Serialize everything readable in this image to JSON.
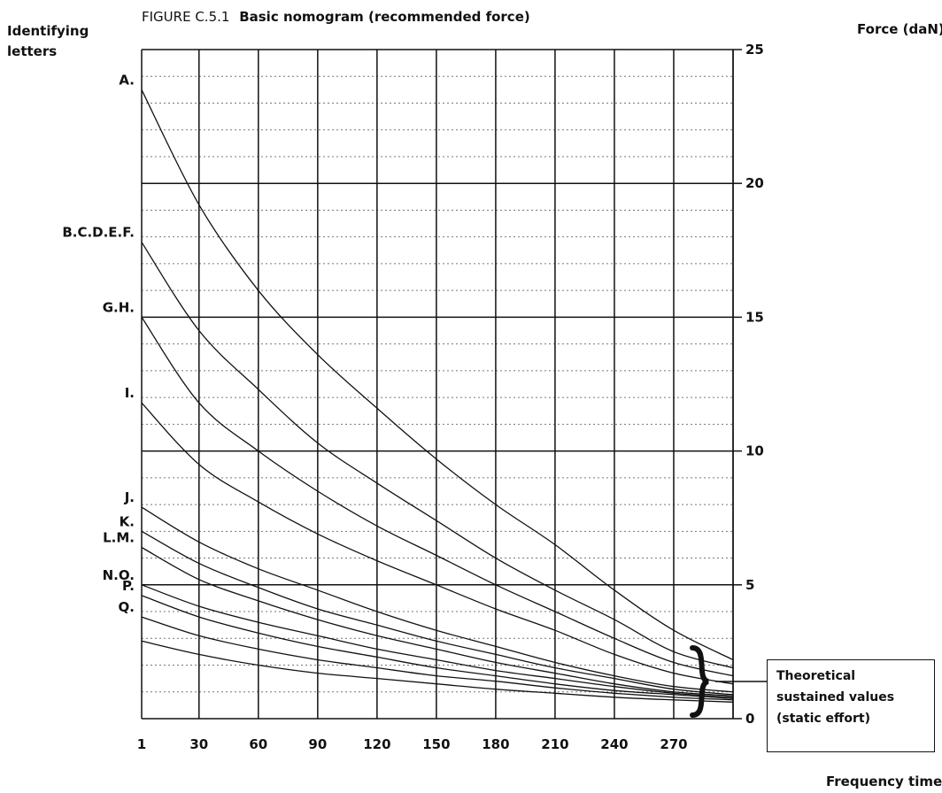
{
  "figure_label": "FIGURE C.5.1",
  "figure_title": "Basic nomogram (recommended force)",
  "left_axis_title": [
    "Identifying",
    "letters"
  ],
  "right_axis_title": "Force (daN)",
  "note_lines": [
    "Theoretical",
    "sustained values",
    "(static effort)"
  ],
  "chart_data": {
    "type": "line",
    "title": "Basic nomogram (recommended force)",
    "xlabel": "Frequency time",
    "ylabel": "Force (daN)",
    "xlim": [
      1,
      300
    ],
    "ylim": [
      0,
      25
    ],
    "x_ticks": [
      1,
      30,
      60,
      90,
      120,
      150,
      180,
      210,
      240,
      270
    ],
    "y_ticks": [
      0,
      5,
      10,
      15,
      20,
      25
    ],
    "grid": true,
    "grid_minor_y_step": 1,
    "x_ticks_extra_gridline": 300,
    "series": [
      {
        "name": "A.",
        "x": [
          1,
          30,
          60,
          90,
          120,
          150,
          180,
          210,
          240,
          270,
          300
        ],
        "y": [
          23.5,
          19.2,
          16.0,
          13.6,
          11.6,
          9.7,
          8.0,
          6.5,
          4.8,
          3.3,
          2.2
        ]
      },
      {
        "name": "B.C.D.E.F.",
        "x": [
          1,
          30,
          60,
          90,
          120,
          150,
          180,
          210,
          240,
          270,
          300
        ],
        "y": [
          17.8,
          14.5,
          12.3,
          10.3,
          8.8,
          7.4,
          6.0,
          4.8,
          3.7,
          2.5,
          1.9
        ]
      },
      {
        "name": "G.H.",
        "x": [
          1,
          30,
          60,
          90,
          120,
          150,
          180,
          210,
          240,
          270,
          300
        ],
        "y": [
          15.0,
          11.8,
          10.0,
          8.5,
          7.2,
          6.1,
          5.0,
          4.0,
          3.0,
          2.1,
          1.6
        ]
      },
      {
        "name": "I.",
        "x": [
          1,
          30,
          60,
          90,
          120,
          150,
          180,
          210,
          240,
          270,
          300
        ],
        "y": [
          11.8,
          9.5,
          8.1,
          6.9,
          5.9,
          5.0,
          4.1,
          3.3,
          2.4,
          1.7,
          1.3
        ]
      },
      {
        "name": "J.",
        "x": [
          1,
          30,
          60,
          90,
          120,
          150,
          180,
          210,
          240,
          270,
          300
        ],
        "y": [
          7.9,
          6.6,
          5.6,
          4.8,
          4.0,
          3.3,
          2.7,
          2.1,
          1.6,
          1.2,
          1.0
        ]
      },
      {
        "name": "K.",
        "x": [
          1,
          30,
          60,
          90,
          120,
          150,
          180,
          210,
          240,
          270,
          300
        ],
        "y": [
          7.0,
          5.8,
          4.9,
          4.1,
          3.5,
          2.9,
          2.4,
          1.9,
          1.5,
          1.1,
          0.9
        ]
      },
      {
        "name": "L.M.",
        "x": [
          1,
          30,
          60,
          90,
          120,
          150,
          180,
          210,
          240,
          270,
          300
        ],
        "y": [
          6.4,
          5.2,
          4.4,
          3.7,
          3.1,
          2.6,
          2.1,
          1.7,
          1.3,
          1.0,
          0.85
        ]
      },
      {
        "name": "N.O.",
        "x": [
          1,
          30,
          60,
          90,
          120,
          150,
          180,
          210,
          240,
          270,
          300
        ],
        "y": [
          5.0,
          4.2,
          3.6,
          3.1,
          2.6,
          2.2,
          1.8,
          1.5,
          1.2,
          0.95,
          0.8
        ]
      },
      {
        "name": "P.",
        "x": [
          1,
          30,
          60,
          90,
          120,
          150,
          180,
          210,
          240,
          270,
          300
        ],
        "y": [
          4.6,
          3.8,
          3.2,
          2.7,
          2.3,
          1.9,
          1.6,
          1.3,
          1.05,
          0.9,
          0.75
        ]
      },
      {
        "name": "Q.",
        "x": [
          1,
          30,
          60,
          90,
          120,
          150,
          180,
          210,
          240,
          270,
          300
        ],
        "y": [
          3.8,
          3.1,
          2.6,
          2.2,
          1.9,
          1.6,
          1.4,
          1.15,
          0.95,
          0.8,
          0.7
        ]
      },
      {
        "name": "",
        "x": [
          1,
          30,
          60,
          90,
          120,
          150,
          180,
          210,
          240,
          270,
          300
        ],
        "y": [
          2.9,
          2.4,
          2.0,
          1.7,
          1.5,
          1.3,
          1.1,
          0.95,
          0.8,
          0.7,
          0.62
        ]
      }
    ]
  }
}
